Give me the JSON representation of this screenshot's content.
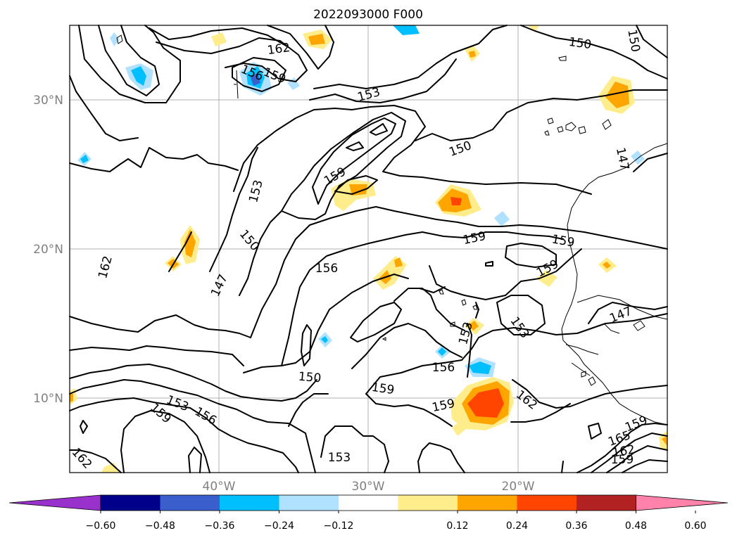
{
  "title": "2022093000 F000",
  "map": {
    "lat_labels": [
      "30°N",
      "20°N",
      "10°N"
    ],
    "lon_labels": [
      "40°W",
      "30°W",
      "20°W"
    ],
    "contour_labels": [
      "162",
      "156",
      "159",
      "153",
      "150",
      "150",
      "150",
      "147",
      "159",
      "153",
      "150",
      "159",
      "159",
      "156",
      "159",
      "162",
      "147",
      "147",
      "153",
      "153",
      "156",
      "150",
      "159",
      "153",
      "159",
      "162",
      "159",
      "156",
      "162",
      "153",
      "159",
      "165",
      "162",
      "159",
      "156"
    ]
  },
  "colorbar": {
    "ticks": [
      "−0.60",
      "−0.48",
      "−0.36",
      "−0.24",
      "−0.12",
      "0.12",
      "0.24",
      "0.36",
      "0.48",
      "0.60"
    ],
    "colors": [
      "#9932cc",
      "#00008b",
      "#3a5fcd",
      "#00bfff",
      "#b0e2ff",
      "#ffffff",
      "#ffec8b",
      "#ffa500",
      "#ff4500",
      "#b22222",
      "#ff82ab"
    ]
  }
}
